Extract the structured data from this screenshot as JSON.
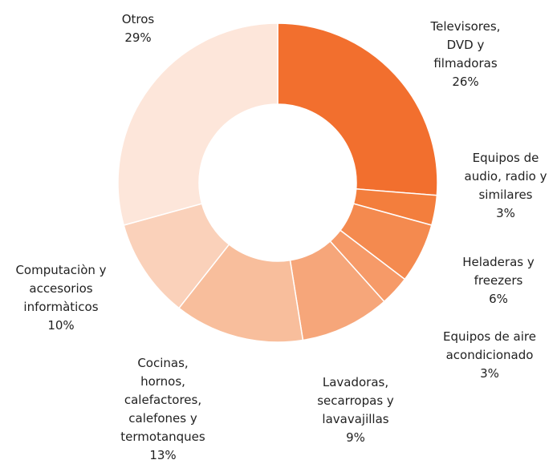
{
  "chart_data": {
    "type": "pie",
    "style": "donut",
    "slices": [
      {
        "label_lines": [
          "Televisores,",
          "DVD y",
          "filmadoras"
        ],
        "percent_label": "26%",
        "value": 26,
        "color": "#F26F2E"
      },
      {
        "label_lines": [
          "Equipos de",
          "audio, radio y",
          "similares"
        ],
        "percent_label": "3%",
        "value": 3,
        "color": "#F37E3D"
      },
      {
        "label_lines": [
          "Heladeras y",
          "freezers"
        ],
        "percent_label": "6%",
        "value": 6,
        "color": "#F48A4F"
      },
      {
        "label_lines": [
          "Equipos de aire",
          "acondicionado"
        ],
        "percent_label": "3%",
        "value": 3,
        "color": "#F69A68"
      },
      {
        "label_lines": [
          "Lavadoras,",
          "secarropas y",
          "lavavajillas"
        ],
        "percent_label": "9%",
        "value": 9,
        "color": "#F6A67A"
      },
      {
        "label_lines": [
          "Cocinas,",
          "hornos,",
          "calefactores,",
          "calefones y",
          "termotanques"
        ],
        "percent_label": "13%",
        "value": 13,
        "color": "#F8BE9C"
      },
      {
        "label_lines": [
          "Computaciòn y",
          "accesorios",
          "informàticos"
        ],
        "percent_label": "10%",
        "value": 10,
        "color": "#FAD1BA"
      },
      {
        "label_lines": [
          "Otros"
        ],
        "percent_label": "29%",
        "value": 29,
        "color": "#FDE6DA"
      }
    ]
  }
}
